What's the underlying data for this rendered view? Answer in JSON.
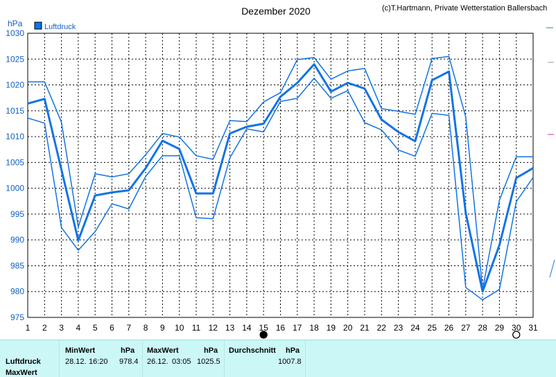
{
  "chart_data": {
    "type": "line",
    "title": "Dezember 2020",
    "copyright": "(c)T.Hartmann, Private Wetterstation Ballersbach",
    "ylabel": "hPa",
    "legend": [
      {
        "name": "Luftdruck",
        "color": "#1173e6",
        "placement": "top-left"
      }
    ],
    "ylim": [
      975,
      1030
    ],
    "yticks": [
      975,
      980,
      985,
      990,
      995,
      1000,
      1005,
      1010,
      1015,
      1020,
      1025,
      1030
    ],
    "xlim": [
      1,
      31
    ],
    "xticks": [
      1,
      2,
      3,
      4,
      5,
      6,
      7,
      8,
      9,
      10,
      11,
      12,
      13,
      14,
      15,
      16,
      17,
      18,
      19,
      20,
      21,
      22,
      23,
      24,
      25,
      26,
      27,
      28,
      29,
      30,
      31
    ],
    "grid": true,
    "markers": [
      {
        "day": 15,
        "symbol": "full-moon-dot"
      },
      {
        "day": 30,
        "symbol": "new-moon-circle"
      }
    ],
    "series": [
      {
        "role": "max",
        "color": "#1173e6",
        "width": 1.5,
        "x": [
          1,
          2,
          3,
          4,
          5,
          6,
          7,
          8,
          9,
          10,
          11,
          12,
          13,
          14,
          15,
          16,
          17,
          18,
          19,
          20,
          21,
          22,
          23,
          24,
          25,
          26,
          27,
          28,
          29,
          30,
          31
        ],
        "values": [
          1020.6,
          1020.6,
          1012.8,
          992.5,
          1002.8,
          1002.2,
          1002.8,
          1006.5,
          1010.6,
          1009.9,
          1006.3,
          1005.6,
          1013.1,
          1012.9,
          1016.7,
          1018.5,
          1024.9,
          1025.3,
          1021.1,
          1022.7,
          1023.2,
          1015.4,
          1014.9,
          1014.3,
          1025.1,
          1025.5,
          1013.8,
          980.4,
          997.7,
          1006.1,
          1006.1
        ]
      },
      {
        "role": "average",
        "color": "#1173e6",
        "width": 3,
        "x": [
          1,
          2,
          3,
          4,
          5,
          6,
          7,
          8,
          9,
          10,
          11,
          12,
          13,
          14,
          15,
          16,
          17,
          18,
          19,
          20,
          21,
          22,
          23,
          24,
          25,
          26,
          27,
          28,
          29,
          30,
          31
        ],
        "values": [
          1016.4,
          1017.3,
          1003.6,
          989.9,
          998.6,
          999.2,
          999.6,
          1003.9,
          1009.2,
          1007.6,
          999.0,
          999.0,
          1010.6,
          1011.9,
          1012.5,
          1017.7,
          1020.4,
          1024.0,
          1018.7,
          1020.4,
          1019.3,
          1013.3,
          1010.9,
          1009.1,
          1020.9,
          1022.6,
          995.2,
          980.0,
          989.0,
          1002.0,
          1003.9
        ]
      },
      {
        "role": "min",
        "color": "#1173e6",
        "width": 1.5,
        "x": [
          1,
          2,
          3,
          4,
          5,
          6,
          7,
          8,
          9,
          10,
          11,
          12,
          13,
          14,
          15,
          16,
          17,
          18,
          19,
          20,
          21,
          22,
          23,
          24,
          25,
          26,
          27,
          28,
          29,
          30,
          31
        ],
        "values": [
          1013.6,
          1012.6,
          992.4,
          988.0,
          991.6,
          997.0,
          996.0,
          1002.3,
          1006.3,
          1006.3,
          994.3,
          994.1,
          1005.9,
          1011.5,
          1010.9,
          1016.8,
          1017.4,
          1021.3,
          1017.4,
          1018.9,
          1012.7,
          1011.3,
          1007.4,
          1006.2,
          1014.5,
          1014.1,
          980.8,
          978.4,
          980.4,
          997.4,
          1002.1
        ]
      }
    ]
  },
  "footer": {
    "row_labels": [
      "Luftdruck",
      "MaxWert"
    ],
    "min": {
      "header": "MinWert",
      "unit": "hPa",
      "date": "28.12.",
      "time": "16:20",
      "value": "978.4"
    },
    "max": {
      "header": "MaxWert",
      "unit": "hPa",
      "date": "26.12.",
      "time": "03:05",
      "value": "1025.5"
    },
    "avg": {
      "header": "Durchschnitt",
      "unit": "hPa",
      "value": "1007.8"
    }
  }
}
